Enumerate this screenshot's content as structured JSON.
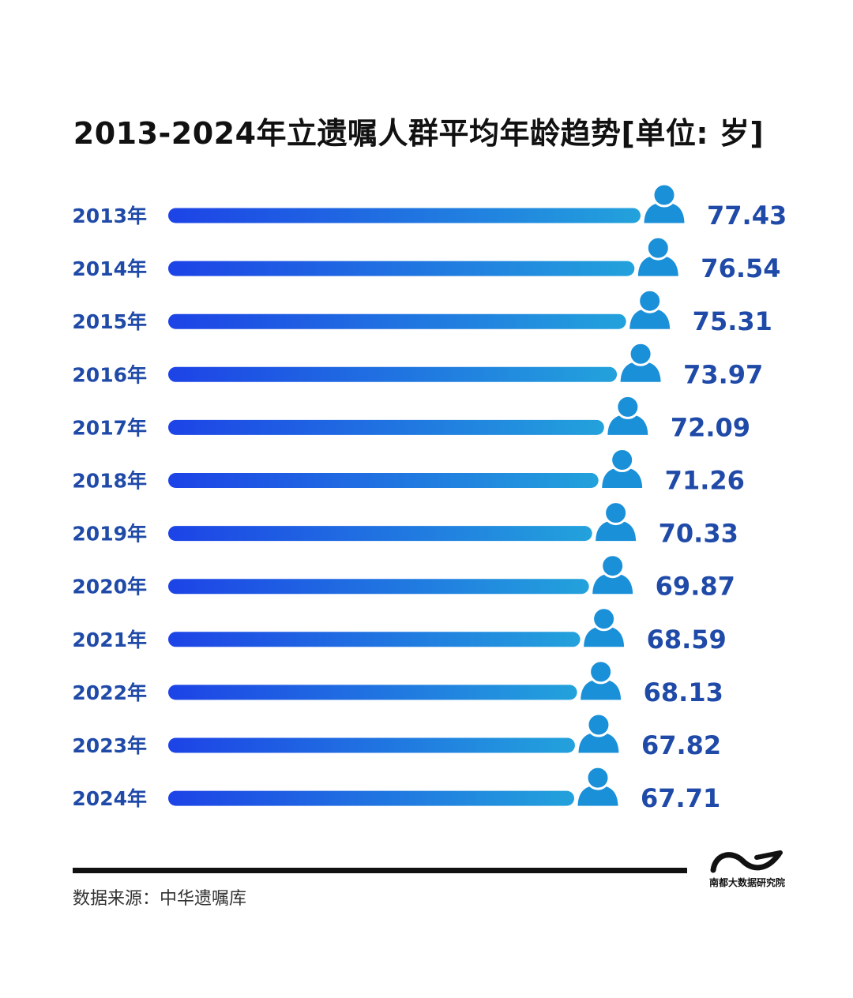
{
  "title": "2013-2024年立遗嘱人群平均年龄趋势[单位: 岁]",
  "source_text": "数据来源：中华遗嘱库",
  "logo_text": "南都大数据研究院",
  "colors": {
    "label": "#1f4aa8",
    "bar_start": "#1d43e6",
    "bar_end": "#23a2dc",
    "person": "#1a90d9"
  },
  "chart_data": {
    "type": "bar",
    "orientation": "horizontal",
    "title": "2013-2024年立遗嘱人群平均年龄趋势[单位: 岁]",
    "unit": "岁",
    "categories": [
      "2013年",
      "2014年",
      "2015年",
      "2016年",
      "2017年",
      "2018年",
      "2019年",
      "2020年",
      "2021年",
      "2022年",
      "2023年",
      "2024年"
    ],
    "values": [
      77.43,
      76.54,
      75.31,
      73.97,
      72.09,
      71.26,
      70.33,
      69.87,
      68.59,
      68.13,
      67.82,
      67.71
    ],
    "value_labels": [
      "77.43",
      "76.54",
      "75.31",
      "73.97",
      "72.09",
      "71.26",
      "70.33",
      "69.87",
      "68.59",
      "68.13",
      "67.82",
      "67.71"
    ],
    "xlabel": "",
    "ylabel": "",
    "grid": false,
    "legend": "none"
  }
}
